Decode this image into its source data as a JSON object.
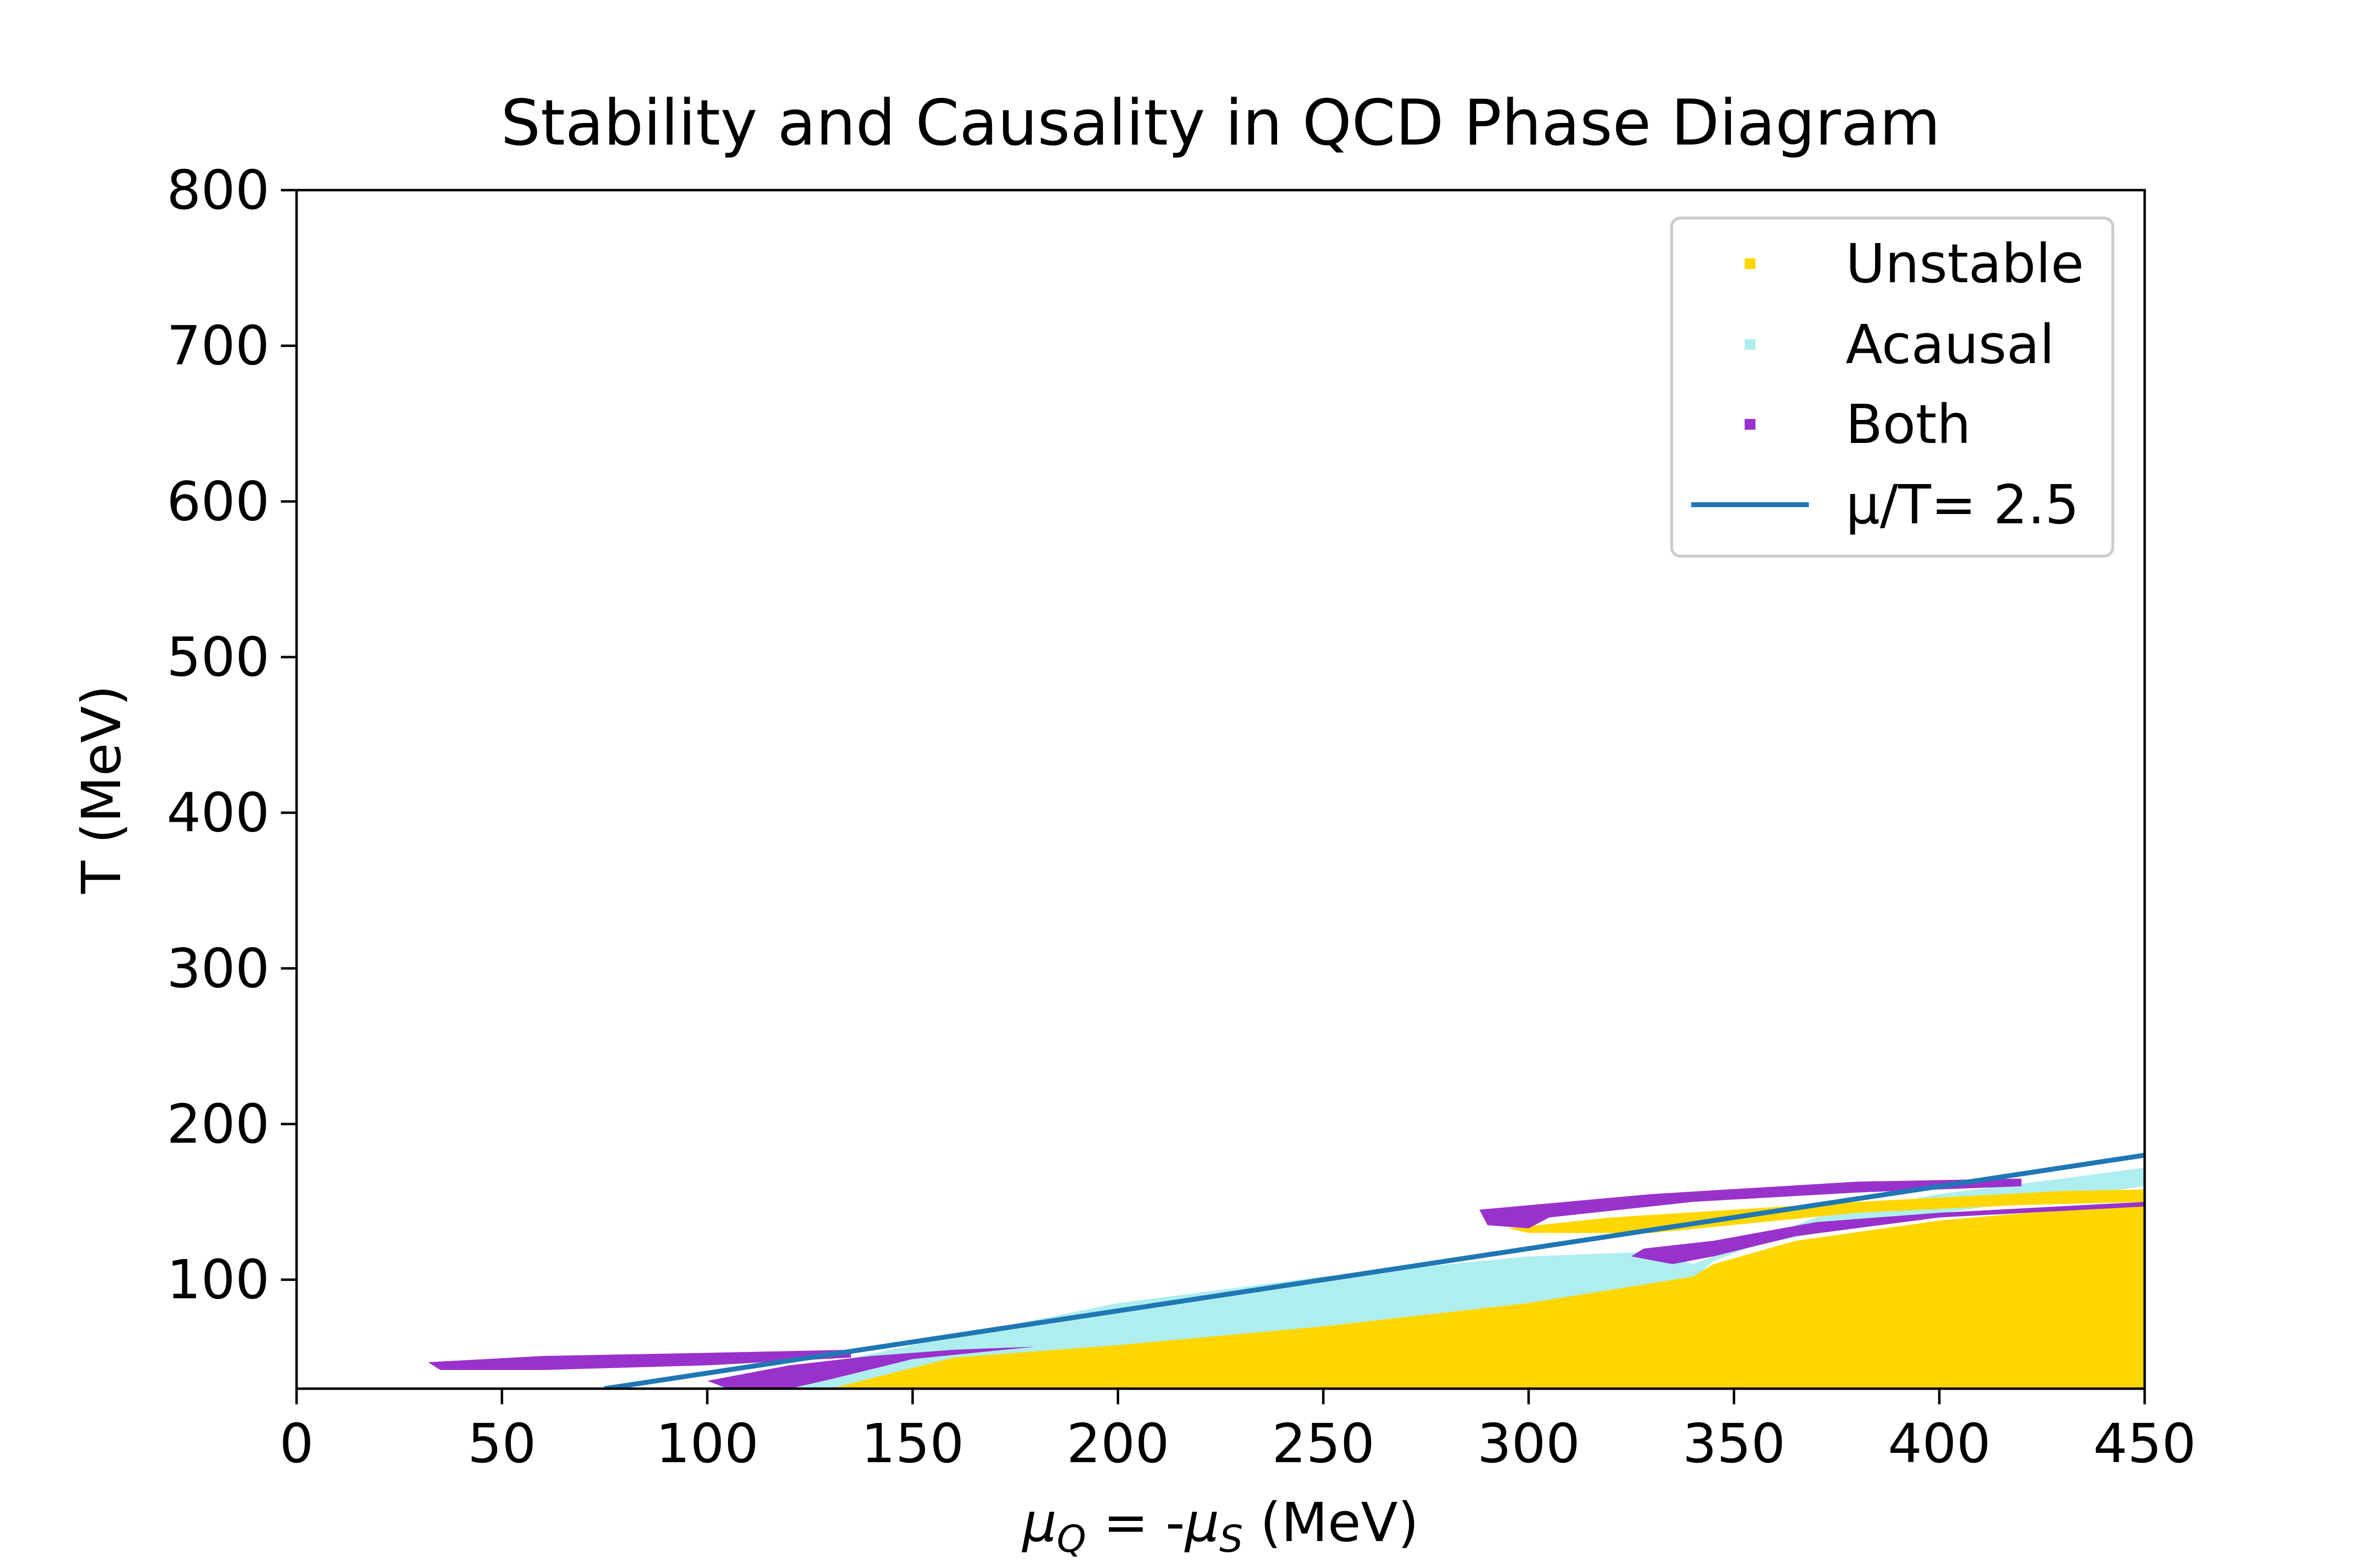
{
  "chart_data": {
    "type": "area",
    "title": "Stability and Causality in QCD Phase Diagram",
    "xlabel": "μ_Q = -μ_S (MeV)",
    "xlabel_parts": {
      "mu1": "μ",
      "sub1": "Q",
      "mid": " = -",
      "mu2": "μ",
      "sub2": "S",
      "end": " (MeV)"
    },
    "ylabel": "T (MeV)",
    "xlim": [
      0,
      450
    ],
    "ylim": [
      30,
      800
    ],
    "xticks": [
      0,
      50,
      100,
      150,
      200,
      250,
      300,
      350,
      400,
      450
    ],
    "yticks": [
      100,
      200,
      300,
      400,
      500,
      600,
      700,
      800
    ],
    "grid": false,
    "legend_position": "top-right",
    "colors": {
      "unstable": "#FFD700",
      "acausal": "#AFEEEE",
      "both": "#9932CC",
      "line": "#1F77B4"
    },
    "legend": [
      {
        "key": "unstable",
        "label": "Unstable",
        "marker": "point",
        "color": "#FFD700"
      },
      {
        "key": "acausal",
        "label": "Acausal",
        "marker": "point",
        "color": "#AFEEEE"
      },
      {
        "key": "both",
        "label": "Both",
        "marker": "point",
        "color": "#9932CC"
      },
      {
        "key": "line",
        "label": "μ/T= 2.5",
        "marker": "line",
        "color": "#1F77B4"
      }
    ],
    "regions": [
      {
        "name": "Acausal",
        "color": "#AFEEEE",
        "points": [
          [
            100,
            30
          ],
          [
            150,
            58
          ],
          [
            200,
            85
          ],
          [
            250,
            102
          ],
          [
            300,
            115
          ],
          [
            330,
            118
          ],
          [
            340,
            110
          ],
          [
            345,
            115
          ],
          [
            370,
            140
          ],
          [
            400,
            155
          ],
          [
            430,
            165
          ],
          [
            450,
            172
          ],
          [
            450,
            160
          ],
          [
            420,
            150
          ],
          [
            380,
            135
          ],
          [
            355,
            122
          ],
          [
            345,
            112
          ],
          [
            340,
            100
          ],
          [
            330,
            95
          ],
          [
            300,
            85
          ],
          [
            250,
            70
          ],
          [
            200,
            55
          ],
          [
            150,
            38
          ],
          [
            130,
            30
          ]
        ]
      },
      {
        "name": "Unstable",
        "color": "#FFD700",
        "points": [
          [
            130,
            30
          ],
          [
            160,
            50
          ],
          [
            200,
            58
          ],
          [
            250,
            70
          ],
          [
            300,
            85
          ],
          [
            340,
            102
          ],
          [
            345,
            110
          ],
          [
            365,
            125
          ],
          [
            400,
            138
          ],
          [
            430,
            145
          ],
          [
            450,
            148
          ],
          [
            450,
            30
          ]
        ]
      },
      {
        "name": "Unstable",
        "color": "#FFD700",
        "points": [
          [
            295,
            133
          ],
          [
            320,
            140
          ],
          [
            380,
            150
          ],
          [
            430,
            157
          ],
          [
            450,
            158
          ],
          [
            450,
            150
          ],
          [
            420,
            148
          ],
          [
            380,
            143
          ],
          [
            330,
            130
          ],
          [
            300,
            130
          ]
        ]
      },
      {
        "name": "Both",
        "color": "#9932CC",
        "points": [
          [
            32,
            47
          ],
          [
            60,
            51
          ],
          [
            100,
            53
          ],
          [
            135,
            55
          ],
          [
            135,
            50
          ],
          [
            100,
            45
          ],
          [
            60,
            42
          ],
          [
            35,
            42
          ]
        ]
      },
      {
        "name": "Both",
        "color": "#9932CC",
        "points": [
          [
            100,
            35
          ],
          [
            120,
            45
          ],
          [
            140,
            51
          ],
          [
            160,
            55
          ],
          [
            180,
            57
          ],
          [
            150,
            49
          ],
          [
            130,
            36
          ],
          [
            120,
            30
          ],
          [
            105,
            30
          ]
        ]
      },
      {
        "name": "Both",
        "color": "#9932CC",
        "points": [
          [
            288,
            145
          ],
          [
            330,
            155
          ],
          [
            380,
            163
          ],
          [
            420,
            165
          ],
          [
            420,
            160
          ],
          [
            380,
            156
          ],
          [
            340,
            150
          ],
          [
            305,
            140
          ],
          [
            300,
            133
          ],
          [
            290,
            135
          ]
        ]
      },
      {
        "name": "Both",
        "color": "#9932CC",
        "points": [
          [
            328,
            120
          ],
          [
            345,
            125
          ],
          [
            370,
            137
          ],
          [
            400,
            143
          ],
          [
            450,
            150
          ],
          [
            450,
            147
          ],
          [
            400,
            140
          ],
          [
            365,
            128
          ],
          [
            345,
            115
          ],
          [
            335,
            110
          ],
          [
            325,
            115
          ]
        ]
      }
    ],
    "series": [
      {
        "name": "μ/T= 2.5",
        "kind": "line",
        "color": "#1F77B4",
        "x": [
          75,
          450
        ],
        "y": [
          30,
          180
        ]
      }
    ]
  }
}
